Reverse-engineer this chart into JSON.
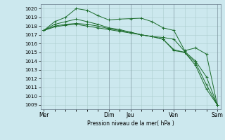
{
  "background_color": "#cce8ee",
  "grid_color": "#aacccc",
  "line_color": "#1a6b2a",
  "marker_color": "#1a6b2a",
  "xlabel": "Pression niveau de la mer( hPa )",
  "ylim": [
    1008.5,
    1020.5
  ],
  "yticks": [
    1009,
    1010,
    1011,
    1012,
    1013,
    1014,
    1015,
    1016,
    1017,
    1018,
    1019,
    1020
  ],
  "xtick_labels": [
    "Mer",
    "Dim",
    "Jeu",
    "Ven",
    "Sam"
  ],
  "xtick_positions": [
    0,
    6,
    8,
    12,
    16
  ],
  "series": [
    [
      1017.5,
      1018.5,
      1019.0,
      1020.0,
      1019.8,
      1019.2,
      1018.7,
      1018.8,
      1018.85,
      1018.9,
      1018.5,
      1017.8,
      1017.5,
      1015.2,
      1015.5,
      1014.8,
      1009.0
    ],
    [
      1017.5,
      1018.2,
      1018.5,
      1018.8,
      1018.5,
      1018.2,
      1017.8,
      1017.6,
      1017.3,
      1017.0,
      1016.8,
      1016.7,
      1016.5,
      1015.1,
      1014.0,
      1012.2,
      1009.0
    ],
    [
      1017.5,
      1018.0,
      1018.2,
      1018.3,
      1018.2,
      1018.0,
      1017.7,
      1017.5,
      1017.3,
      1017.0,
      1016.8,
      1016.5,
      1015.3,
      1015.0,
      1013.8,
      1011.3,
      1009.0
    ],
    [
      1017.5,
      1017.9,
      1018.1,
      1018.2,
      1018.0,
      1017.8,
      1017.6,
      1017.4,
      1017.2,
      1017.0,
      1016.8,
      1016.5,
      1015.2,
      1015.0,
      1013.5,
      1010.8,
      1009.0
    ]
  ],
  "vline_positions": [
    6,
    8,
    12,
    16
  ],
  "n_points": 17
}
